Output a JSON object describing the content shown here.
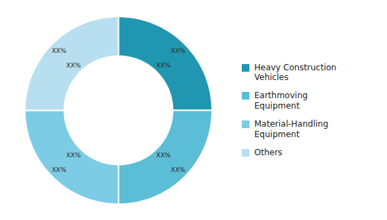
{
  "chart_data": {
    "type": "donut",
    "categories": [
      "Heavy Construction\nVehicles",
      "Earthmoving\nEquipment",
      "Material-Handling\nEquipment",
      "Others"
    ],
    "values": [
      25,
      25,
      25,
      25
    ],
    "value_labels": [
      "XX%",
      "XX%",
      "XX%",
      "XX%"
    ],
    "colors": [
      "#2196b0",
      "#5bbdd6",
      "#7dcce6",
      "#b8dff0"
    ],
    "data_labels": true,
    "legend": "right"
  }
}
